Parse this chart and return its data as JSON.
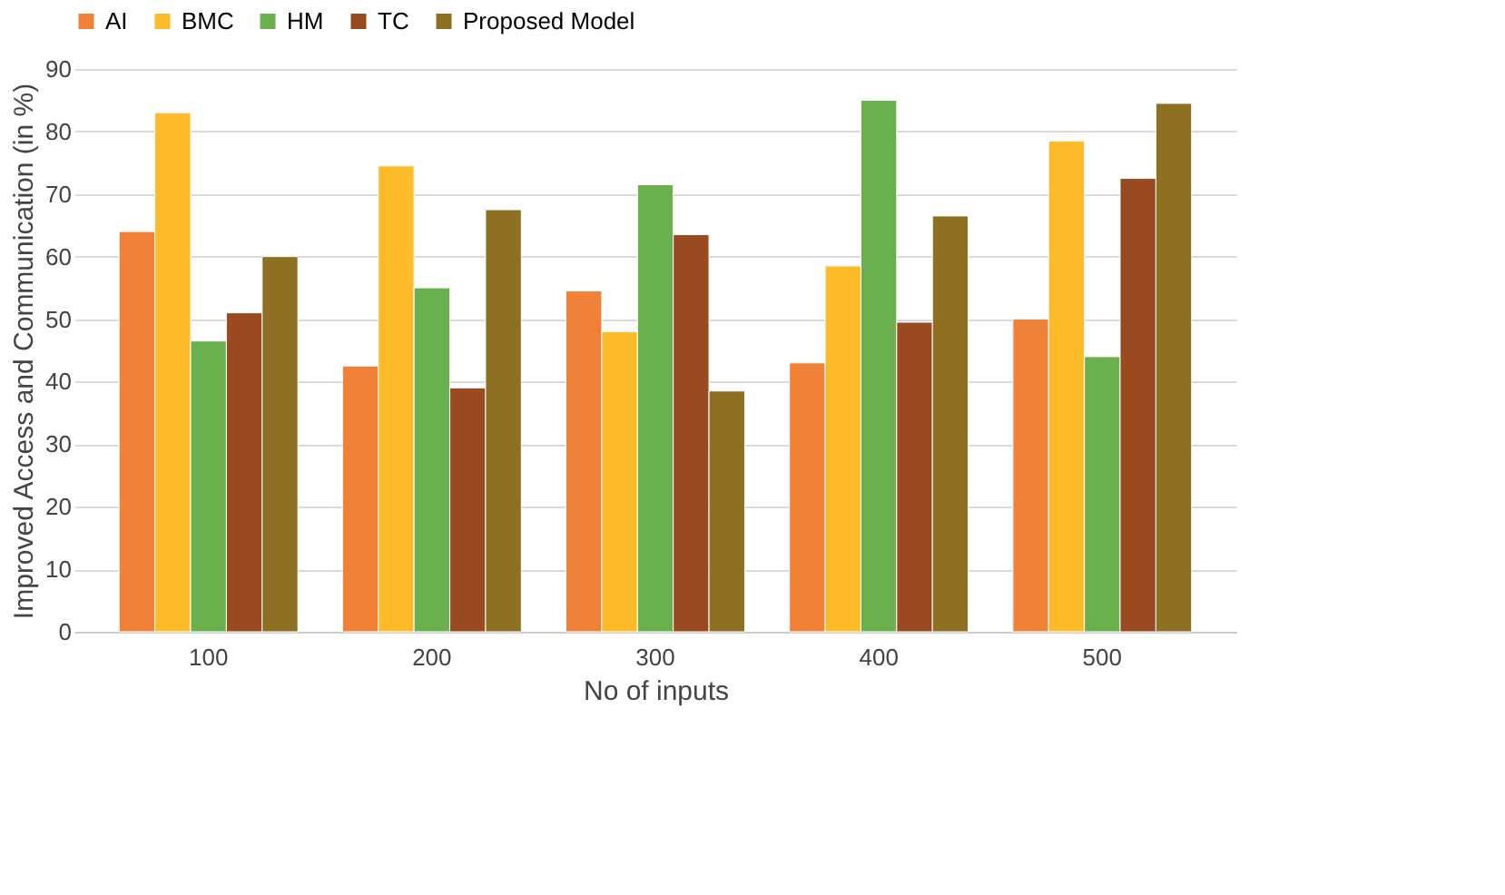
{
  "chart_data": {
    "type": "bar",
    "xlabel": "No of inputs",
    "ylabel": "Improved Access and Communication (in %)",
    "categories": [
      "100",
      "200",
      "300",
      "400",
      "500"
    ],
    "series": [
      {
        "name": "AI",
        "color": "#f08139",
        "values": [
          64,
          42.5,
          54.5,
          43,
          50
        ]
      },
      {
        "name": "BMC",
        "color": "#fdbb2a",
        "values": [
          83,
          74.5,
          48,
          58.5,
          78.5
        ]
      },
      {
        "name": "HM",
        "color": "#6ab04f",
        "values": [
          46.5,
          55,
          71.5,
          85,
          44
        ]
      },
      {
        "name": "TC",
        "color": "#994a20",
        "values": [
          51,
          39,
          63.5,
          49.5,
          72.5
        ]
      },
      {
        "name": "Proposed Model",
        "color": "#8e7023",
        "values": [
          60,
          67.5,
          38.5,
          66.5,
          84.5
        ]
      }
    ],
    "ylim": [
      0,
      90
    ],
    "yticks": [
      0,
      10,
      20,
      30,
      40,
      50,
      60,
      70,
      80,
      90
    ],
    "grid": "y",
    "legend": "top"
  }
}
